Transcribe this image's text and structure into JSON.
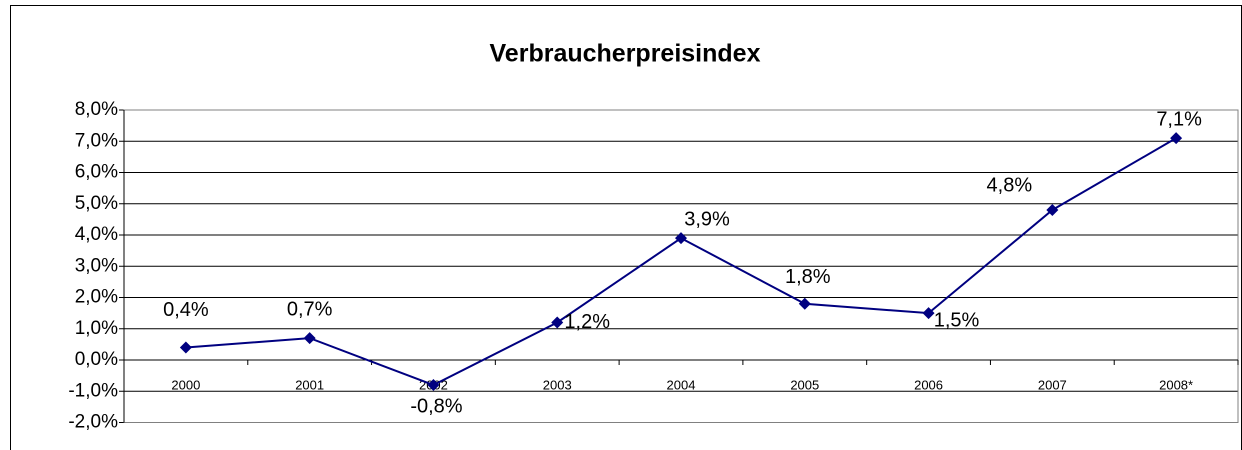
{
  "chart_data": {
    "type": "line",
    "title": "Verbraucherpreisindex",
    "categories": [
      "2000",
      "2001",
      "2002",
      "2003",
      "2004",
      "2005",
      "2006",
      "2007",
      "2008*"
    ],
    "series": [
      {
        "name": "Verbraucherpreisindex",
        "color": "#000080",
        "values": [
          0.4,
          0.7,
          -0.8,
          1.2,
          3.9,
          1.8,
          1.5,
          4.8,
          7.1
        ],
        "value_labels": [
          "0,4%",
          "0,7%",
          "-0,8%",
          "1,2%",
          "3,9%",
          "1,8%",
          "1,5%",
          "4,8%",
          "7,1%"
        ]
      }
    ],
    "ylim": [
      -2,
      8
    ],
    "yticks": [
      {
        "value": -2,
        "label": "-2,0%"
      },
      {
        "value": -1,
        "label": "-1,0%"
      },
      {
        "value": 0,
        "label": "0,0%"
      },
      {
        "value": 1,
        "label": "1,0%"
      },
      {
        "value": 2,
        "label": "2,0%"
      },
      {
        "value": 3,
        "label": "3,0%"
      },
      {
        "value": 4,
        "label": "4,0%"
      },
      {
        "value": 5,
        "label": "5,0%"
      },
      {
        "value": 6,
        "label": "6,0%"
      },
      {
        "value": 7,
        "label": "7,0%"
      },
      {
        "value": 8,
        "label": "8,0%"
      }
    ],
    "grid": true
  }
}
